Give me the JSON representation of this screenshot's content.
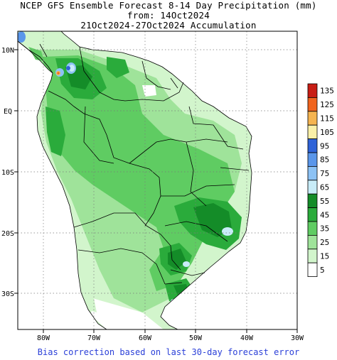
{
  "title": {
    "line1": "NCEP GFS Ensemble Forecast 8-14 Day Precipitation (mm)",
    "line2": "from: 14Oct2024",
    "line3": "21Oct2024-27Oct2024 Accumulation"
  },
  "axes": {
    "lat_labels": [
      "10N",
      "EQ",
      "10S",
      "20S",
      "30S"
    ],
    "lon_labels": [
      "80W",
      "70W",
      "60W",
      "50W",
      "40W",
      "30W"
    ],
    "lat_range": [
      -36,
      14
    ],
    "lon_range": [
      -85,
      -30
    ]
  },
  "legend": {
    "levels": [
      {
        "label": "135",
        "color": "#c81d14"
      },
      {
        "label": "125",
        "color": "#f0641e"
      },
      {
        "label": "115",
        "color": "#f5b450"
      },
      {
        "label": "105",
        "color": "#faf0a8"
      },
      {
        "label": "95",
        "color": "#2f63d8"
      },
      {
        "label": "85",
        "color": "#5a96ea"
      },
      {
        "label": "75",
        "color": "#8cc2f5"
      },
      {
        "label": "65",
        "color": "#c8ecf8"
      },
      {
        "label": "55",
        "color": "#148c28"
      },
      {
        "label": "45",
        "color": "#2aab3b"
      },
      {
        "label": "35",
        "color": "#5fcc62"
      },
      {
        "label": "25",
        "color": "#9fe39a"
      },
      {
        "label": "15",
        "color": "#d2f5cc"
      },
      {
        "label": "5",
        "color": "#ffffff"
      }
    ]
  },
  "footer": "Bias correction based on last 30-day forecast error"
}
